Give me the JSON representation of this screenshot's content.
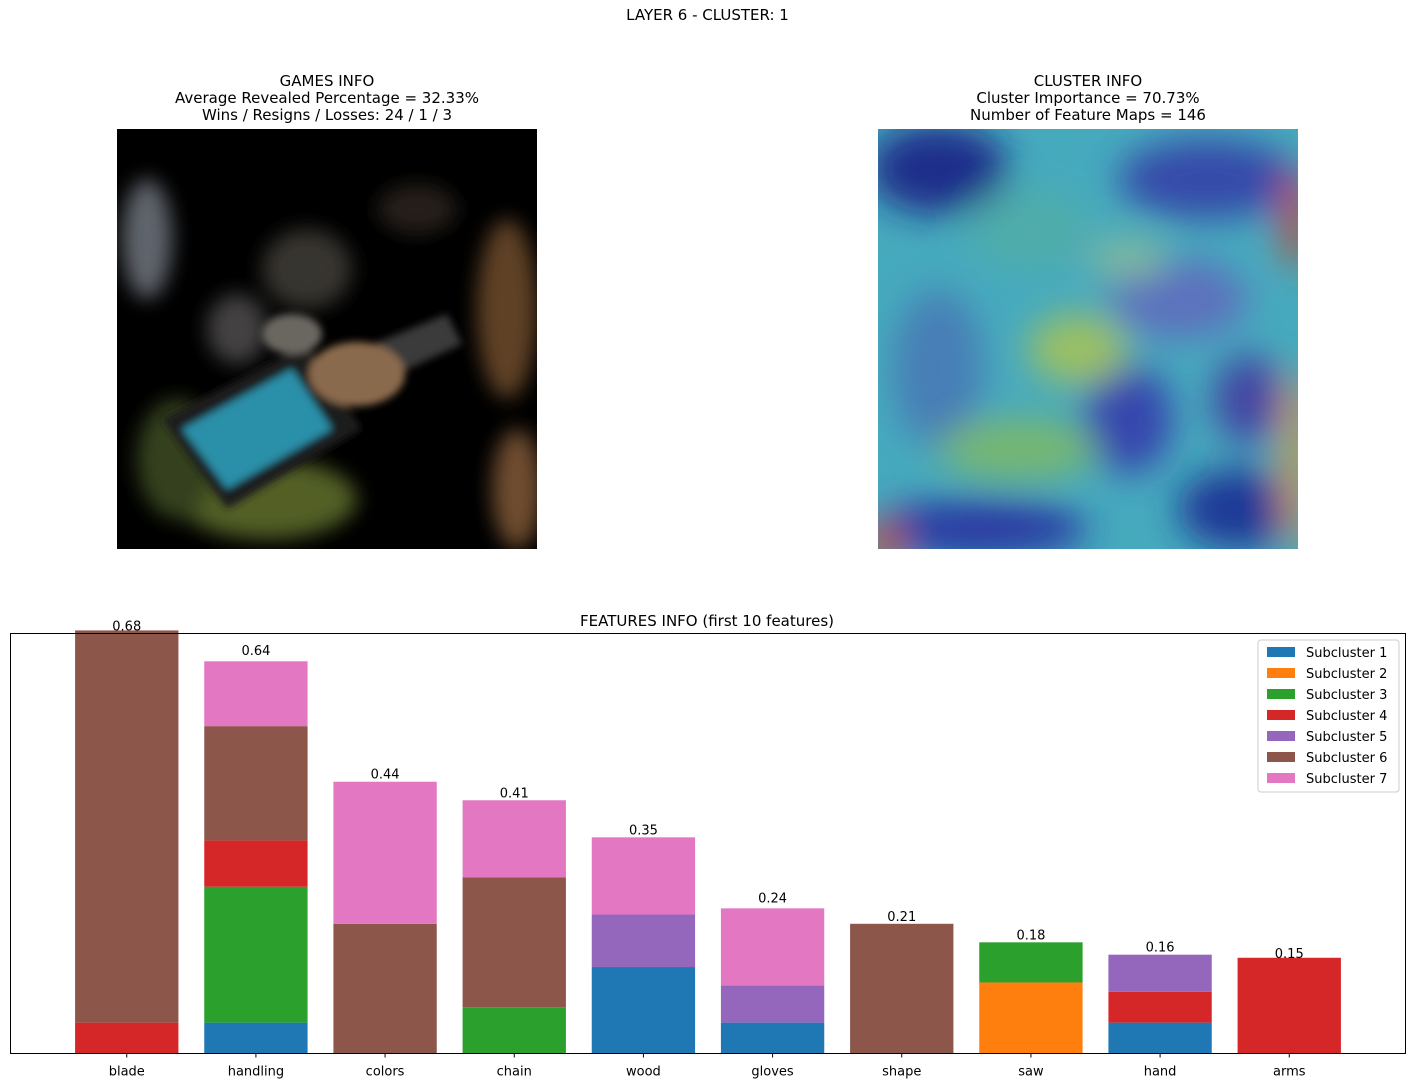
{
  "suptitle": "LAYER 6 - CLUSTER: 1",
  "games_info": {
    "title": "GAMES INFO",
    "line1": "Average Revealed Percentage = 32.33%",
    "line2": "Wins / Resigns / Losses: 24 / 1 / 3",
    "image_icon": "masked-chainsaw-photo"
  },
  "cluster_info": {
    "title": "CLUSTER INFO",
    "line1": "Cluster Importance = 70.73%",
    "line2": "Number of Feature Maps = 146",
    "image_icon": "heatmap-chainsaw-photo"
  },
  "chart_data": {
    "type": "bar",
    "stacked": true,
    "title": "FEATURES INFO (first 10 features)",
    "xlabel": "",
    "ylabel": "",
    "ylim": [
      0,
      0.68
    ],
    "grid": false,
    "legend_position": "top-right",
    "categories": [
      "blade",
      "handling",
      "colors",
      "chain",
      "wood",
      "gloves",
      "shape",
      "saw",
      "hand",
      "arms"
    ],
    "totals": [
      0.68,
      0.64,
      0.44,
      0.41,
      0.35,
      0.24,
      0.21,
      0.18,
      0.16,
      0.15
    ],
    "total_labels": [
      "0.68",
      "0.64",
      "0.44",
      "0.41",
      "0.35",
      "0.24",
      "0.21",
      "0.18",
      "0.16",
      "0.15"
    ],
    "series": [
      {
        "name": "Subcluster 1",
        "color": "#1f77b4",
        "values": [
          0,
          0.05,
          0,
          0,
          0.14,
          0.05,
          0,
          0,
          0.05,
          0
        ]
      },
      {
        "name": "Subcluster 2",
        "color": "#ff7f0e",
        "values": [
          0,
          0,
          0,
          0,
          0,
          0,
          0,
          0.115,
          0,
          0
        ]
      },
      {
        "name": "Subcluster 3",
        "color": "#2ca02c",
        "values": [
          0,
          0.22,
          0,
          0.075,
          0,
          0,
          0,
          0.065,
          0,
          0
        ]
      },
      {
        "name": "Subcluster 4",
        "color": "#d62728",
        "values": [
          0.05,
          0.075,
          0,
          0,
          0,
          0,
          0,
          0,
          0.05,
          0.155
        ]
      },
      {
        "name": "Subcluster 5",
        "color": "#9467bd",
        "values": [
          0,
          0,
          0,
          0,
          0.085,
          0.06,
          0,
          0,
          0.06,
          0
        ]
      },
      {
        "name": "Subcluster 6",
        "color": "#8c564b",
        "values": [
          0.635,
          0.185,
          0.21,
          0.21,
          0,
          0,
          0.21,
          0,
          0,
          0
        ]
      },
      {
        "name": "Subcluster 7",
        "color": "#e377c2",
        "values": [
          0,
          0.105,
          0.23,
          0.125,
          0.125,
          0.125,
          0,
          0,
          0,
          0
        ]
      }
    ]
  }
}
